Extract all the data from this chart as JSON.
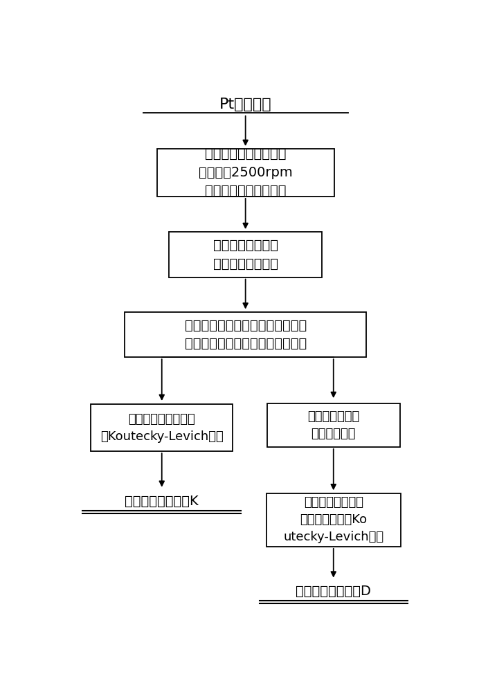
{
  "bg_color": "#ffffff",
  "text_color": "#000000",
  "box_edge_color": "#000000",
  "arrow_color": "#000000",
  "title_text": "Pt圆盘电极",
  "box1_text": "置于碱性待测溶液中，\n转速调至2500rpm\n（清除圆盘表面气泡）",
  "box2_text": "不同圆盘电极转速\n阳极极化曲线测试",
  "box3_text": "取极化曲线电流的倒数与圆盘旋转\n角速度平方根的倒数进行线性拟合",
  "box4L_text": "取拟合直线的截距带\n入Koutecky-Levich方程",
  "box4R_text": "使用旋转粘度件\n测试运动粘度",
  "box5L_text": "获得反应速率常数K",
  "box5R_text": "取拟合直线的斜率\n和运动粘度带入Ko\nutecky-Levich方程",
  "box6R_text": "获得反应扩散系数D",
  "font_size_title": 16,
  "font_size_box": 14,
  "font_size_small": 13
}
